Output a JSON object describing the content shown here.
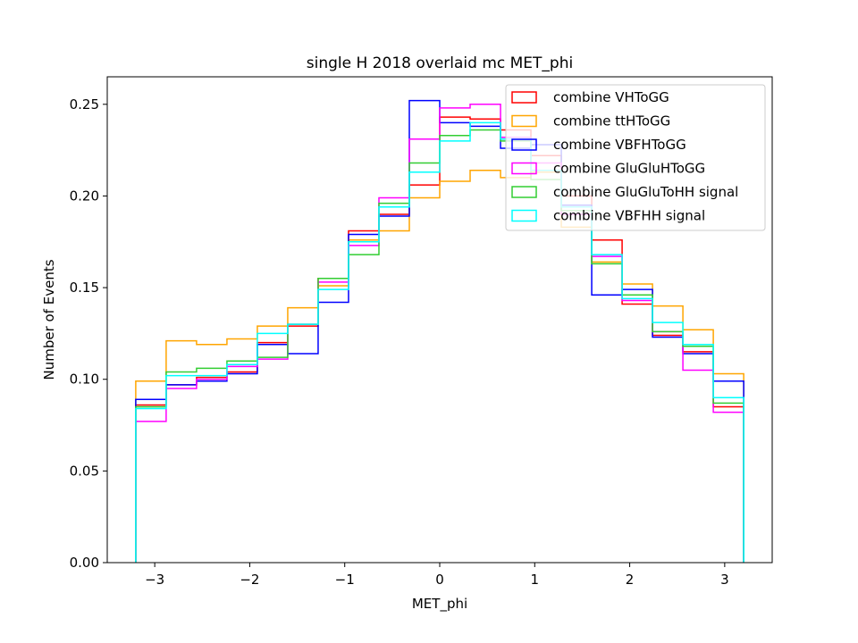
{
  "chart_data": {
    "type": "histogram",
    "title": "single H 2018 overlaid mc MET_phi",
    "xlabel": "MET_phi",
    "ylabel": "Number of Events",
    "xlim": [
      -3.5,
      3.5
    ],
    "ylim": [
      0,
      0.265
    ],
    "grid": false,
    "legend_position": "top-right",
    "xticks": [
      -3,
      -2,
      -1,
      0,
      1,
      2,
      3
    ],
    "xtick_labels": [
      "−3",
      "−2",
      "−1",
      "0",
      "1",
      "2",
      "3"
    ],
    "yticks": [
      0.0,
      0.05,
      0.1,
      0.15,
      0.2,
      0.25
    ],
    "ytick_labels": [
      "0.00",
      "0.05",
      "0.10",
      "0.15",
      "0.20",
      "0.25"
    ],
    "bin_edges": [
      -3.2,
      -2.88,
      -2.56,
      -2.24,
      -1.92,
      -1.6,
      -1.28,
      -0.96,
      -0.64,
      -0.32,
      0.0,
      0.32,
      0.64,
      0.96,
      1.28,
      1.6,
      1.92,
      2.24,
      2.56,
      2.88,
      3.2
    ],
    "series": [
      {
        "name": "combine VHToGG",
        "color": "#ff0000",
        "values": [
          0.086,
          0.097,
          0.101,
          0.104,
          0.12,
          0.129,
          0.155,
          0.181,
          0.19,
          0.206,
          0.243,
          0.242,
          0.236,
          0.222,
          0.2,
          0.176,
          0.141,
          0.124,
          0.115,
          0.085
        ]
      },
      {
        "name": "combine ttHToGG",
        "color": "#ffa500",
        "values": [
          0.099,
          0.121,
          0.119,
          0.122,
          0.129,
          0.139,
          0.151,
          0.176,
          0.181,
          0.199,
          0.208,
          0.214,
          0.21,
          0.213,
          0.183,
          0.164,
          0.152,
          0.14,
          0.127,
          0.103
        ]
      },
      {
        "name": "combine VBFHToGG",
        "color": "#0000ff",
        "values": [
          0.089,
          0.097,
          0.099,
          0.103,
          0.119,
          0.114,
          0.142,
          0.179,
          0.189,
          0.252,
          0.24,
          0.238,
          0.226,
          0.228,
          0.195,
          0.146,
          0.149,
          0.123,
          0.114,
          0.099
        ]
      },
      {
        "name": "combine GluGluHToGG",
        "color": "#ff00ff",
        "values": [
          0.077,
          0.095,
          0.1,
          0.107,
          0.111,
          0.13,
          0.153,
          0.173,
          0.199,
          0.231,
          0.248,
          0.25,
          0.232,
          0.218,
          0.19,
          0.167,
          0.143,
          0.126,
          0.105,
          0.082
        ]
      },
      {
        "name": "combine GluGluToHH signal",
        "color": "#32cd32",
        "values": [
          0.085,
          0.104,
          0.106,
          0.11,
          0.112,
          0.13,
          0.155,
          0.168,
          0.196,
          0.218,
          0.233,
          0.236,
          0.23,
          0.209,
          0.192,
          0.163,
          0.146,
          0.126,
          0.118,
          0.087
        ]
      },
      {
        "name": "combine VBFHH signal",
        "color": "#00ffff",
        "values": [
          0.084,
          0.102,
          0.102,
          0.108,
          0.125,
          0.13,
          0.149,
          0.175,
          0.194,
          0.213,
          0.23,
          0.24,
          0.231,
          0.214,
          0.194,
          0.168,
          0.144,
          0.131,
          0.119,
          0.09
        ]
      }
    ]
  }
}
